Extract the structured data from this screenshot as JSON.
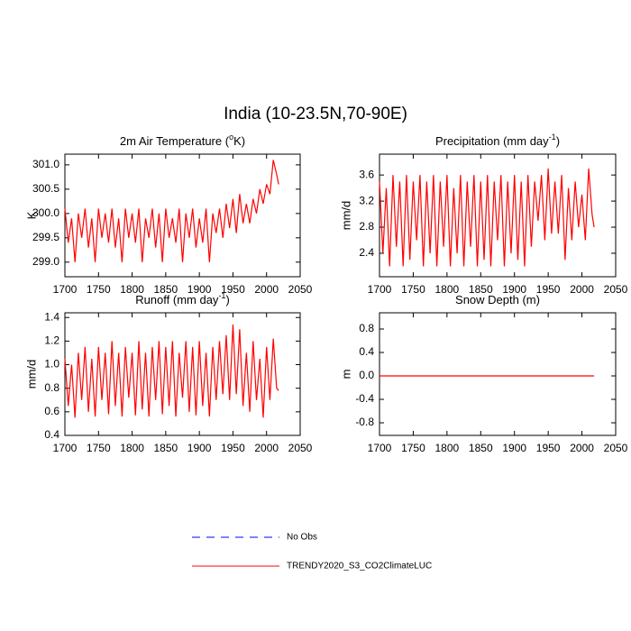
{
  "title": "India (10-23.5N,70-90E)",
  "chart_data": [
    {
      "type": "line",
      "title": [
        "2m Air Temperature (",
        "o",
        "K)"
      ],
      "y_label": "K",
      "xlim": [
        1700,
        2050
      ],
      "xticks": [
        1700,
        1750,
        1800,
        1850,
        1900,
        1950,
        2000,
        2050
      ],
      "ylim": [
        298.7,
        301.22
      ],
      "yticks": [
        {
          "value": 299,
          "label": "299.0"
        },
        299.5,
        {
          "value": 300,
          "label": "300.0"
        },
        300.5,
        {
          "value": 301,
          "label": "301.0"
        }
      ],
      "x": [
        1700,
        1705,
        1710,
        1715,
        1720,
        1725,
        1730,
        1735,
        1740,
        1745,
        1750,
        1755,
        1760,
        1765,
        1770,
        1775,
        1780,
        1785,
        1790,
        1795,
        1800,
        1805,
        1810,
        1815,
        1820,
        1825,
        1830,
        1835,
        1840,
        1845,
        1850,
        1855,
        1860,
        1865,
        1870,
        1875,
        1880,
        1885,
        1890,
        1895,
        1900,
        1905,
        1910,
        1915,
        1920,
        1925,
        1930,
        1935,
        1940,
        1945,
        1950,
        1955,
        1960,
        1965,
        1970,
        1975,
        1980,
        1985,
        1990,
        1995,
        2000,
        2005,
        2010,
        2015,
        2018
      ],
      "series": [
        {
          "color": "#ff0000",
          "values": [
            300.1,
            299.4,
            299.9,
            299.0,
            300.0,
            299.5,
            300.1,
            299.3,
            299.9,
            299.0,
            300.1,
            299.5,
            300.0,
            299.4,
            300.1,
            299.3,
            299.9,
            299.0,
            300.1,
            299.5,
            300.0,
            299.4,
            300.1,
            299.0,
            299.9,
            299.5,
            300.1,
            299.3,
            300.0,
            299.0,
            300.1,
            299.5,
            299.9,
            299.4,
            300.1,
            299.0,
            300.0,
            299.5,
            300.1,
            299.3,
            299.9,
            299.4,
            300.1,
            299.0,
            300.0,
            299.6,
            300.1,
            299.5,
            300.2,
            299.7,
            300.3,
            299.6,
            300.4,
            299.8,
            300.2,
            299.8,
            300.3,
            300.0,
            300.5,
            300.2,
            300.6,
            300.4,
            301.1,
            300.8,
            300.6
          ]
        }
      ]
    },
    {
      "type": "line",
      "title": [
        "Precipitation (mm day",
        "-1",
        ")"
      ],
      "y_label": "mm/d",
      "xlim": [
        1700,
        2050
      ],
      "xticks": [
        1700,
        1750,
        1800,
        1850,
        1900,
        1950,
        2000,
        2050
      ],
      "ylim": [
        2.04,
        3.92
      ],
      "yticks": [
        2.4,
        2.8,
        3.2,
        3.6
      ],
      "x": [
        1700,
        1705,
        1710,
        1715,
        1720,
        1725,
        1730,
        1735,
        1740,
        1745,
        1750,
        1755,
        1760,
        1765,
        1770,
        1775,
        1780,
        1785,
        1790,
        1795,
        1800,
        1805,
        1810,
        1815,
        1820,
        1825,
        1830,
        1835,
        1840,
        1845,
        1850,
        1855,
        1860,
        1865,
        1870,
        1875,
        1880,
        1885,
        1890,
        1895,
        1900,
        1905,
        1910,
        1915,
        1920,
        1925,
        1930,
        1935,
        1940,
        1945,
        1950,
        1955,
        1960,
        1965,
        1970,
        1975,
        1980,
        1985,
        1990,
        1995,
        2000,
        2005,
        2010,
        2015,
        2018
      ],
      "series": [
        {
          "color": "#ff0000",
          "values": [
            3.5,
            2.4,
            3.4,
            2.2,
            3.6,
            2.5,
            3.5,
            2.2,
            3.6,
            2.3,
            3.5,
            2.6,
            3.6,
            2.2,
            3.5,
            2.4,
            3.6,
            2.2,
            3.5,
            2.5,
            3.6,
            2.2,
            3.4,
            2.4,
            3.6,
            2.2,
            3.5,
            2.5,
            3.6,
            2.2,
            3.5,
            2.3,
            3.6,
            2.2,
            3.5,
            2.6,
            3.6,
            2.2,
            3.5,
            2.4,
            3.6,
            2.3,
            3.5,
            2.2,
            3.6,
            2.5,
            3.5,
            2.9,
            3.6,
            2.6,
            3.7,
            2.7,
            3.5,
            2.7,
            3.6,
            2.3,
            3.4,
            2.6,
            3.5,
            2.8,
            3.3,
            2.6,
            3.7,
            3.0,
            2.8
          ]
        }
      ]
    },
    {
      "type": "line",
      "title": [
        "Runoff (mm day",
        "-1",
        ")"
      ],
      "y_label": "mm/d",
      "xlim": [
        1700,
        2050
      ],
      "xticks": [
        1700,
        1750,
        1800,
        1850,
        1900,
        1950,
        2000,
        2050
      ],
      "ylim": [
        0.4,
        1.44
      ],
      "yticks": [
        0.4,
        0.6,
        0.8,
        {
          "value": 1,
          "label": "1.0"
        },
        1.2,
        1.4
      ],
      "x": [
        1700,
        1705,
        1710,
        1715,
        1720,
        1725,
        1730,
        1735,
        1740,
        1745,
        1750,
        1755,
        1760,
        1765,
        1770,
        1775,
        1780,
        1785,
        1790,
        1795,
        1800,
        1805,
        1810,
        1815,
        1820,
        1825,
        1830,
        1835,
        1840,
        1845,
        1850,
        1855,
        1860,
        1865,
        1870,
        1875,
        1880,
        1885,
        1890,
        1895,
        1900,
        1905,
        1910,
        1915,
        1920,
        1925,
        1930,
        1935,
        1940,
        1945,
        1950,
        1955,
        1960,
        1965,
        1970,
        1975,
        1980,
        1985,
        1990,
        1995,
        2000,
        2005,
        2010,
        2015,
        2018
      ],
      "series": [
        {
          "color": "#ff0000",
          "values": [
            1.05,
            0.65,
            1.0,
            0.55,
            1.1,
            0.7,
            1.15,
            0.6,
            1.05,
            0.56,
            1.15,
            0.7,
            1.1,
            0.58,
            1.2,
            0.65,
            1.1,
            0.56,
            1.15,
            0.72,
            1.1,
            0.57,
            1.2,
            0.62,
            1.1,
            0.56,
            1.15,
            0.7,
            1.2,
            0.58,
            1.15,
            0.65,
            1.2,
            0.56,
            1.1,
            0.72,
            1.2,
            0.6,
            1.15,
            0.57,
            1.2,
            0.65,
            1.1,
            0.56,
            1.15,
            0.7,
            1.2,
            0.75,
            1.25,
            0.7,
            1.34,
            0.75,
            1.3,
            0.65,
            1.1,
            0.6,
            1.2,
            0.7,
            1.05,
            0.55,
            1.15,
            0.7,
            1.22,
            0.8,
            0.78
          ]
        }
      ]
    },
    {
      "type": "line",
      "title": [
        "Snow Depth (m)"
      ],
      "y_label": "m",
      "xlim": [
        1700,
        2050
      ],
      "xticks": [
        1700,
        1750,
        1800,
        1850,
        1900,
        1950,
        2000,
        2050
      ],
      "ylim": [
        -1.015,
        1.077
      ],
      "yticks": [
        -0.8,
        -0.4,
        {
          "value": 0,
          "label": "0.0"
        },
        0.4,
        0.8
      ],
      "x": [
        1700,
        1750,
        1800,
        1850,
        1900,
        1950,
        2000,
        2018
      ],
      "series": [
        {
          "color": "#ff0000",
          "values": [
            0,
            0,
            0,
            0,
            0,
            0,
            0,
            0
          ]
        }
      ]
    }
  ],
  "legend": {
    "entries": [
      {
        "name": "No Obs",
        "color": "#0000ff",
        "dash": true
      },
      {
        "name": "TRENDY2020_S3_CO2ClimateLUC",
        "color": "#ff0000",
        "dash": false
      }
    ]
  }
}
